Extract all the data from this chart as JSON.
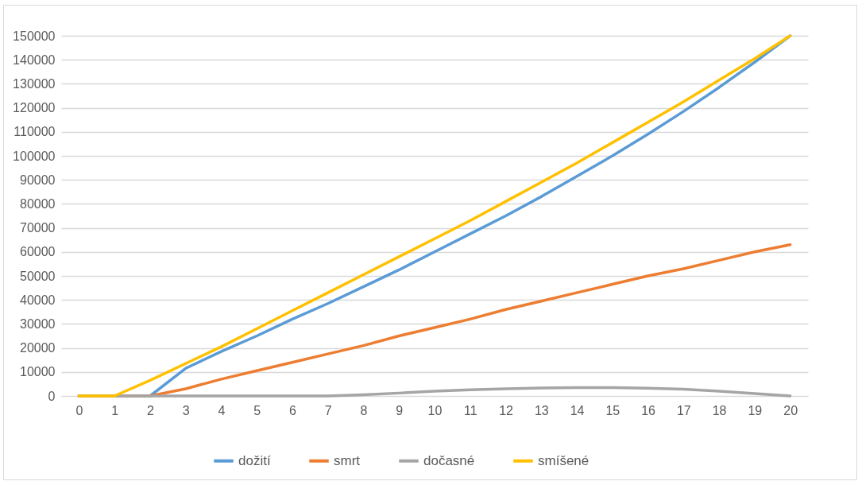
{
  "chart_data": {
    "type": "line",
    "x": [
      0,
      1,
      2,
      3,
      4,
      5,
      6,
      7,
      8,
      9,
      10,
      11,
      12,
      13,
      14,
      15,
      16,
      17,
      18,
      19,
      20
    ],
    "xlim": [
      -0.5,
      20.5
    ],
    "xticks": [
      0,
      1,
      2,
      3,
      4,
      5,
      6,
      7,
      8,
      9,
      10,
      11,
      12,
      13,
      14,
      15,
      16,
      17,
      18,
      19,
      20
    ],
    "ylim": [
      0,
      150000
    ],
    "yticks": [
      0,
      10000,
      20000,
      30000,
      40000,
      50000,
      60000,
      70000,
      80000,
      90000,
      100000,
      110000,
      120000,
      130000,
      140000,
      150000
    ],
    "grid": "y",
    "legend": "bottom",
    "marker": "none",
    "line_style": "solid",
    "series": [
      {
        "name": "dožití",
        "color": "#5b9bd5",
        "values": [
          0,
          0,
          0,
          11500,
          18500,
          25000,
          32000,
          38500,
          45500,
          52500,
          60000,
          67500,
          75000,
          83000,
          91500,
          100000,
          109000,
          118500,
          128500,
          139000,
          150000
        ]
      },
      {
        "name": "smrt",
        "color": "#ed7d31",
        "values": [
          0,
          0,
          0,
          3000,
          7000,
          10500,
          14000,
          17500,
          21000,
          25000,
          28500,
          32000,
          36000,
          39500,
          43000,
          46500,
          50000,
          53000,
          56500,
          60000,
          63000
        ]
      },
      {
        "name": "dočasné",
        "color": "#a5a5a5",
        "values": [
          0,
          0,
          0,
          0,
          0,
          0,
          0,
          0,
          500,
          1200,
          2000,
          2600,
          3000,
          3300,
          3500,
          3500,
          3200,
          2800,
          2000,
          1000,
          0
        ]
      },
      {
        "name": "smíšené",
        "color": "#ffc000",
        "values": [
          0,
          0,
          6500,
          13500,
          20500,
          28000,
          35500,
          43000,
          50500,
          58000,
          65500,
          73000,
          81000,
          89000,
          97000,
          105500,
          114000,
          122500,
          131500,
          140500,
          150000
        ]
      }
    ]
  }
}
